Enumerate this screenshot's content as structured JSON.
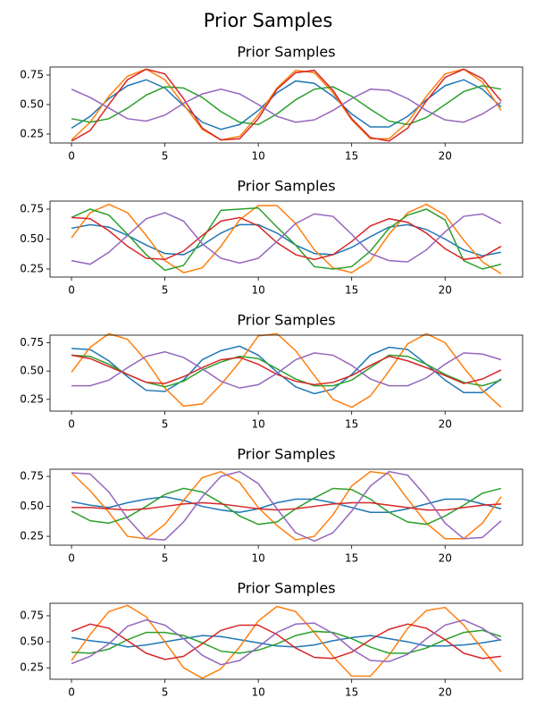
{
  "title": "Prior Samples",
  "chart_data": [
    {
      "type": "line",
      "title": "Prior Samples",
      "x": [
        0,
        1,
        2,
        3,
        4,
        5,
        6,
        7,
        8,
        9,
        10,
        11,
        12,
        13,
        14,
        15,
        16,
        17,
        18,
        19,
        20,
        21,
        22,
        23
      ],
      "xlim": [
        -1.15,
        24.15
      ],
      "xticks": [
        0,
        5,
        10,
        15,
        20
      ],
      "ylim": [
        0.174,
        0.818
      ],
      "yticks": [
        0.25,
        {
          "value": 0.5,
          "label": "0.50"
        },
        0.75
      ],
      "series": [
        {
          "color": "#1f77b4",
          "values": [
            0.3,
            0.4,
            0.55,
            0.66,
            0.71,
            0.64,
            0.49,
            0.35,
            0.29,
            0.33,
            0.45,
            0.6,
            0.7,
            0.68,
            0.57,
            0.42,
            0.31,
            0.31,
            0.4,
            0.54,
            0.66,
            0.71,
            0.63,
            0.48
          ]
        },
        {
          "color": "#ff7f0e",
          "values": [
            0.2,
            0.35,
            0.57,
            0.74,
            0.8,
            0.71,
            0.5,
            0.29,
            0.2,
            0.23,
            0.41,
            0.64,
            0.79,
            0.77,
            0.6,
            0.37,
            0.21,
            0.21,
            0.35,
            0.57,
            0.76,
            0.8,
            0.69,
            0.45
          ]
        },
        {
          "color": "#2ca02c",
          "values": [
            0.38,
            0.35,
            0.38,
            0.47,
            0.58,
            0.65,
            0.64,
            0.56,
            0.44,
            0.35,
            0.33,
            0.42,
            0.54,
            0.63,
            0.65,
            0.57,
            0.46,
            0.36,
            0.33,
            0.39,
            0.5,
            0.61,
            0.66,
            0.63
          ]
        },
        {
          "color": "#d62728",
          "values": [
            0.19,
            0.28,
            0.5,
            0.71,
            0.8,
            0.76,
            0.55,
            0.3,
            0.2,
            0.21,
            0.38,
            0.63,
            0.77,
            0.79,
            0.62,
            0.38,
            0.22,
            0.19,
            0.3,
            0.53,
            0.73,
            0.8,
            0.72,
            0.53
          ]
        },
        {
          "color": "#9467bd",
          "values": [
            0.63,
            0.56,
            0.47,
            0.38,
            0.36,
            0.41,
            0.51,
            0.59,
            0.63,
            0.59,
            0.5,
            0.4,
            0.35,
            0.37,
            0.45,
            0.55,
            0.63,
            0.62,
            0.55,
            0.45,
            0.37,
            0.35,
            0.42,
            0.52
          ]
        }
      ]
    },
    {
      "type": "line",
      "title": "Prior Samples",
      "x": [
        0,
        1,
        2,
        3,
        4,
        5,
        6,
        7,
        8,
        9,
        10,
        11,
        12,
        13,
        14,
        15,
        16,
        17,
        18,
        19,
        20,
        21,
        22,
        23
      ],
      "xlim": [
        -1.15,
        24.15
      ],
      "xticks": [
        0,
        5,
        10,
        15,
        20
      ],
      "ylim": [
        0.183,
        0.817
      ],
      "yticks": [
        0.25,
        {
          "value": 0.5,
          "label": "0.50"
        },
        0.75
      ],
      "series": [
        {
          "color": "#1f77b4",
          "values": [
            0.59,
            0.62,
            0.6,
            0.53,
            0.45,
            0.38,
            0.37,
            0.45,
            0.55,
            0.62,
            0.62,
            0.55,
            0.45,
            0.38,
            0.37,
            0.43,
            0.52,
            0.6,
            0.62,
            0.58,
            0.5,
            0.41,
            0.36,
            0.39
          ]
        },
        {
          "color": "#ff7f0e",
          "values": [
            0.51,
            0.72,
            0.79,
            0.72,
            0.53,
            0.32,
            0.22,
            0.26,
            0.44,
            0.66,
            0.78,
            0.78,
            0.63,
            0.41,
            0.26,
            0.22,
            0.32,
            0.54,
            0.72,
            0.79,
            0.7,
            0.49,
            0.31,
            0.21
          ]
        },
        {
          "color": "#2ca02c",
          "values": [
            0.68,
            0.75,
            0.7,
            0.54,
            0.37,
            0.24,
            0.28,
            0.5,
            0.74,
            0.75,
            0.76,
            0.6,
            0.45,
            0.27,
            0.25,
            0.27,
            0.4,
            0.59,
            0.7,
            0.75,
            0.66,
            0.32,
            0.25,
            0.29
          ]
        },
        {
          "color": "#d62728",
          "values": [
            0.68,
            0.67,
            0.57,
            0.44,
            0.34,
            0.33,
            0.4,
            0.53,
            0.65,
            0.68,
            0.61,
            0.47,
            0.37,
            0.33,
            0.37,
            0.48,
            0.61,
            0.67,
            0.64,
            0.55,
            0.42,
            0.33,
            0.35,
            0.44
          ]
        },
        {
          "color": "#9467bd",
          "values": [
            0.32,
            0.29,
            0.39,
            0.53,
            0.67,
            0.72,
            0.65,
            0.46,
            0.34,
            0.3,
            0.34,
            0.48,
            0.63,
            0.71,
            0.69,
            0.54,
            0.38,
            0.32,
            0.31,
            0.41,
            0.56,
            0.69,
            0.71,
            0.63
          ]
        }
      ]
    },
    {
      "type": "line",
      "title": "Prior Samples",
      "x": [
        0,
        1,
        2,
        3,
        4,
        5,
        6,
        7,
        8,
        9,
        10,
        11,
        12,
        13,
        14,
        15,
        16,
        17,
        18,
        19,
        20,
        21,
        22,
        23
      ],
      "xlim": [
        -1.15,
        24.15
      ],
      "xticks": [
        0,
        5,
        10,
        15,
        20
      ],
      "ylim": [
        0.146,
        0.817
      ],
      "yticks": [
        0.25,
        {
          "value": 0.5,
          "label": "0.50"
        },
        0.75
      ],
      "series": [
        {
          "color": "#1f77b4",
          "values": [
            0.7,
            0.69,
            0.59,
            0.45,
            0.33,
            0.32,
            0.42,
            0.6,
            0.68,
            0.72,
            0.64,
            0.49,
            0.36,
            0.3,
            0.34,
            0.47,
            0.64,
            0.71,
            0.69,
            0.56,
            0.42,
            0.31,
            0.31,
            0.43
          ]
        },
        {
          "color": "#ff7f0e",
          "values": [
            0.49,
            0.71,
            0.83,
            0.78,
            0.59,
            0.35,
            0.19,
            0.21,
            0.38,
            0.58,
            0.81,
            0.83,
            0.68,
            0.46,
            0.25,
            0.18,
            0.28,
            0.5,
            0.74,
            0.83,
            0.75,
            0.53,
            0.33,
            0.18
          ]
        },
        {
          "color": "#2ca02c",
          "values": [
            0.64,
            0.63,
            0.56,
            0.47,
            0.4,
            0.36,
            0.41,
            0.51,
            0.58,
            0.63,
            0.61,
            0.52,
            0.43,
            0.37,
            0.37,
            0.42,
            0.53,
            0.64,
            0.63,
            0.56,
            0.47,
            0.4,
            0.37,
            0.42
          ]
        },
        {
          "color": "#d62728",
          "values": [
            0.64,
            0.61,
            0.54,
            0.47,
            0.4,
            0.39,
            0.45,
            0.53,
            0.6,
            0.62,
            0.56,
            0.47,
            0.41,
            0.38,
            0.4,
            0.46,
            0.55,
            0.63,
            0.59,
            0.53,
            0.46,
            0.39,
            0.43,
            0.51
          ]
        },
        {
          "color": "#9467bd",
          "values": [
            0.37,
            0.37,
            0.42,
            0.53,
            0.63,
            0.67,
            0.62,
            0.52,
            0.41,
            0.35,
            0.38,
            0.48,
            0.6,
            0.66,
            0.64,
            0.55,
            0.43,
            0.37,
            0.37,
            0.44,
            0.56,
            0.66,
            0.65,
            0.6
          ]
        }
      ]
    },
    {
      "type": "line",
      "title": "Prior Samples",
      "x": [
        0,
        1,
        2,
        3,
        4,
        5,
        6,
        7,
        8,
        9,
        10,
        11,
        12,
        13,
        14,
        15,
        16,
        17,
        18,
        19,
        20,
        21,
        22,
        23
      ],
      "xlim": [
        -1.15,
        24.15
      ],
      "xticks": [
        0,
        5,
        10,
        15,
        20
      ],
      "ylim": [
        0.176,
        0.81
      ],
      "yticks": [
        0.25,
        {
          "value": 0.5,
          "label": "0.50"
        },
        0.75
      ],
      "series": [
        {
          "color": "#1f77b4",
          "values": [
            0.54,
            0.51,
            0.49,
            0.53,
            0.56,
            0.58,
            0.55,
            0.5,
            0.47,
            0.45,
            0.48,
            0.53,
            0.56,
            0.56,
            0.53,
            0.49,
            0.45,
            0.45,
            0.48,
            0.52,
            0.56,
            0.56,
            0.52,
            0.48
          ]
        },
        {
          "color": "#ff7f0e",
          "values": [
            0.78,
            0.63,
            0.45,
            0.25,
            0.23,
            0.35,
            0.55,
            0.74,
            0.79,
            0.7,
            0.49,
            0.34,
            0.22,
            0.25,
            0.43,
            0.67,
            0.79,
            0.77,
            0.56,
            0.36,
            0.23,
            0.23,
            0.36,
            0.58
          ]
        },
        {
          "color": "#2ca02c",
          "values": [
            0.46,
            0.38,
            0.36,
            0.41,
            0.5,
            0.6,
            0.65,
            0.62,
            0.53,
            0.42,
            0.35,
            0.37,
            0.48,
            0.57,
            0.65,
            0.64,
            0.56,
            0.45,
            0.37,
            0.35,
            0.42,
            0.51,
            0.61,
            0.65
          ]
        },
        {
          "color": "#d62728",
          "values": [
            0.49,
            0.49,
            0.48,
            0.47,
            0.48,
            0.5,
            0.52,
            0.53,
            0.52,
            0.5,
            0.48,
            0.47,
            0.48,
            0.5,
            0.52,
            0.53,
            0.53,
            0.51,
            0.49,
            0.47,
            0.47,
            0.49,
            0.51,
            0.52
          ]
        },
        {
          "color": "#9467bd",
          "values": [
            0.78,
            0.77,
            0.62,
            0.4,
            0.23,
            0.22,
            0.37,
            0.58,
            0.75,
            0.79,
            0.69,
            0.48,
            0.28,
            0.21,
            0.28,
            0.46,
            0.67,
            0.79,
            0.76,
            0.58,
            0.36,
            0.23,
            0.24,
            0.38
          ]
        }
      ]
    },
    {
      "type": "line",
      "title": "Prior Samples",
      "x": [
        0,
        1,
        2,
        3,
        4,
        5,
        6,
        7,
        8,
        9,
        10,
        11,
        12,
        13,
        14,
        15,
        16,
        17,
        18,
        19,
        20,
        21,
        22,
        23
      ],
      "xlim": [
        -1.15,
        24.15
      ],
      "xticks": [
        0,
        5,
        10,
        15,
        20
      ],
      "ylim": [
        0.14,
        0.87
      ],
      "yticks": [
        0.25,
        {
          "value": 0.5,
          "label": "0.50"
        },
        0.75
      ],
      "series": [
        {
          "color": "#1f77b4",
          "values": [
            0.54,
            0.51,
            0.49,
            0.45,
            0.47,
            0.5,
            0.53,
            0.56,
            0.55,
            0.52,
            0.49,
            0.46,
            0.45,
            0.47,
            0.51,
            0.54,
            0.56,
            0.53,
            0.5,
            0.46,
            0.46,
            0.47,
            0.49,
            0.52
          ]
        },
        {
          "color": "#ff7f0e",
          "values": [
            0.32,
            0.57,
            0.79,
            0.85,
            0.74,
            0.5,
            0.25,
            0.15,
            0.24,
            0.45,
            0.7,
            0.84,
            0.79,
            0.59,
            0.36,
            0.17,
            0.17,
            0.37,
            0.63,
            0.8,
            0.83,
            0.66,
            0.43,
            0.21
          ]
        },
        {
          "color": "#2ca02c",
          "values": [
            0.4,
            0.39,
            0.43,
            0.52,
            0.59,
            0.59,
            0.56,
            0.49,
            0.41,
            0.39,
            0.42,
            0.48,
            0.56,
            0.6,
            0.59,
            0.53,
            0.45,
            0.39,
            0.39,
            0.44,
            0.52,
            0.59,
            0.61,
            0.55
          ]
        },
        {
          "color": "#d62728",
          "values": [
            0.6,
            0.67,
            0.63,
            0.51,
            0.39,
            0.33,
            0.36,
            0.48,
            0.61,
            0.66,
            0.66,
            0.57,
            0.44,
            0.35,
            0.34,
            0.4,
            0.52,
            0.62,
            0.67,
            0.63,
            0.52,
            0.39,
            0.34,
            0.36
          ]
        },
        {
          "color": "#9467bd",
          "values": [
            0.29,
            0.36,
            0.48,
            0.65,
            0.71,
            0.66,
            0.53,
            0.37,
            0.28,
            0.32,
            0.45,
            0.59,
            0.67,
            0.68,
            0.58,
            0.43,
            0.32,
            0.31,
            0.38,
            0.53,
            0.66,
            0.71,
            0.63,
            0.51
          ]
        }
      ]
    }
  ]
}
